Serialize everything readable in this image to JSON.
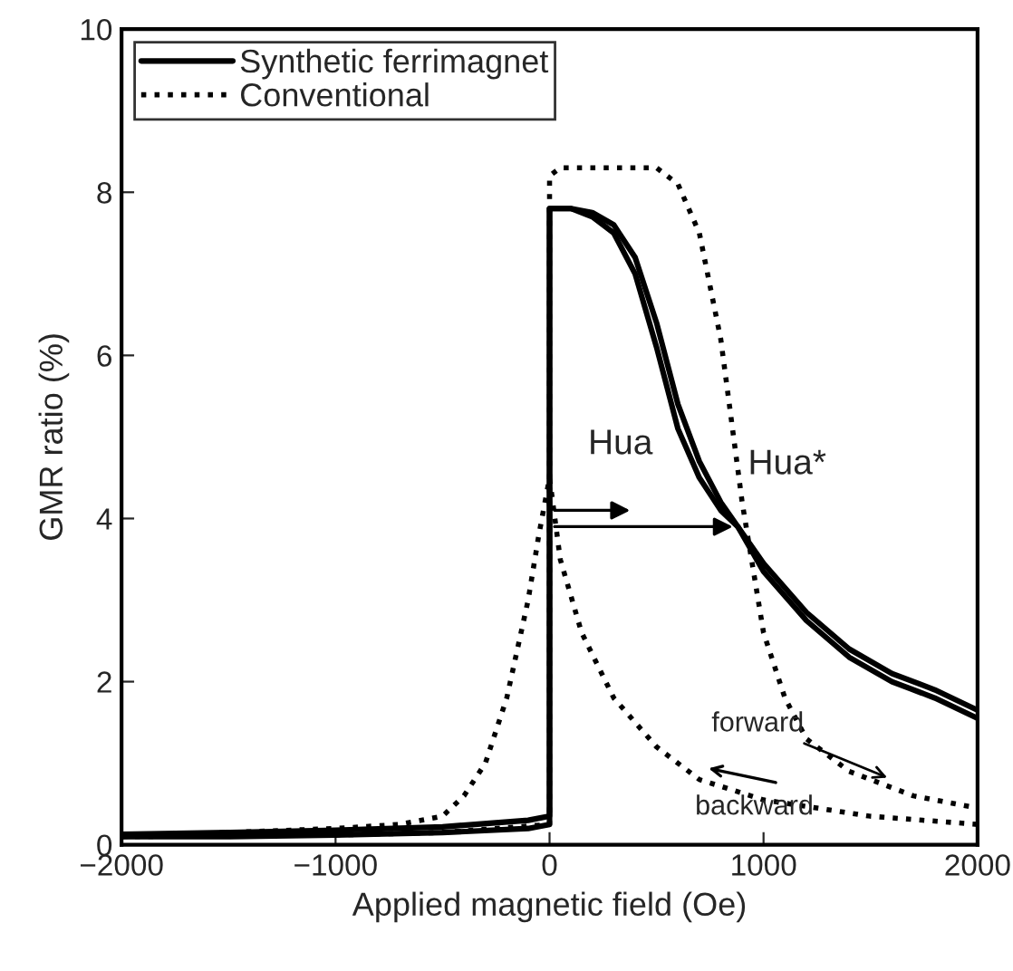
{
  "chart_data": {
    "type": "line",
    "xlabel": "Applied magnetic field (Oe)",
    "ylabel": "GMR ratio (%)",
    "xlim": [
      -2000,
      2000
    ],
    "ylim": [
      0,
      10
    ],
    "xticks": [
      {
        "value": -2000,
        "label": "−2000"
      },
      {
        "value": -1000,
        "label": "−1000"
      },
      0,
      1000,
      2000
    ],
    "yticks": [
      0,
      2,
      4,
      6,
      8,
      10
    ],
    "grid": false,
    "legend": "top left",
    "marker": "none",
    "series": [
      {
        "name": "Synthetic ferrimagnet",
        "color": "#000000",
        "line_style": "solid",
        "x": [
          -2000,
          -1500,
          -1000,
          -500,
          -100,
          0,
          0,
          100,
          200,
          300,
          400,
          500,
          600,
          700,
          800,
          880,
          1000,
          1200,
          1400,
          1600,
          1800,
          2000
        ],
        "values": [
          0.1,
          0.1,
          0.12,
          0.15,
          0.2,
          0.25,
          7.8,
          7.8,
          7.7,
          7.5,
          7.0,
          6.1,
          5.1,
          4.5,
          4.1,
          3.9,
          3.45,
          2.85,
          2.4,
          2.1,
          1.9,
          1.65
        ]
      },
      {
        "color": "#000000",
        "line_style": "solid",
        "x": [
          2000,
          1800,
          1600,
          1400,
          1200,
          1000,
          880,
          800,
          700,
          600,
          500,
          400,
          300,
          200,
          100,
          0,
          0,
          -100,
          -500,
          -1000,
          -1500,
          -2000
        ],
        "values": [
          1.55,
          1.8,
          2.0,
          2.3,
          2.75,
          3.35,
          3.9,
          4.2,
          4.7,
          5.4,
          6.4,
          7.2,
          7.6,
          7.75,
          7.8,
          7.8,
          0.35,
          0.3,
          0.22,
          0.18,
          0.15,
          0.13
        ]
      },
      {
        "name": "Conventional",
        "color": "#000000",
        "line_style": "dotted",
        "x": [
          -2000,
          -1000,
          -500,
          0,
          0,
          50,
          200,
          500,
          600,
          700,
          800,
          900,
          1000,
          1100,
          1200,
          1400,
          1700,
          2000
        ],
        "values": [
          0.1,
          0.12,
          0.15,
          0.25,
          8.2,
          8.3,
          8.3,
          8.3,
          8.1,
          7.5,
          6.2,
          4.2,
          2.6,
          1.8,
          1.3,
          0.9,
          0.6,
          0.45
        ]
      },
      {
        "color": "#000000",
        "line_style": "dotted",
        "x": [
          2000,
          1500,
          1000,
          700,
          500,
          300,
          150,
          50,
          0,
          -50,
          -100,
          -200,
          -300,
          -400,
          -500,
          -700,
          -1000,
          -2000
        ],
        "values": [
          0.25,
          0.35,
          0.55,
          0.8,
          1.2,
          1.8,
          2.6,
          3.5,
          4.5,
          3.8,
          3.0,
          1.8,
          1.0,
          0.6,
          0.35,
          0.25,
          0.2,
          0.1
        ]
      }
    ],
    "annotations": [
      "Hua",
      {
        "text": "Hua*",
        "x": 880,
        "y": 3.9
      },
      {
        "text": "forward",
        "x": 1600,
        "y": 0.8
      },
      "backward"
    ]
  }
}
